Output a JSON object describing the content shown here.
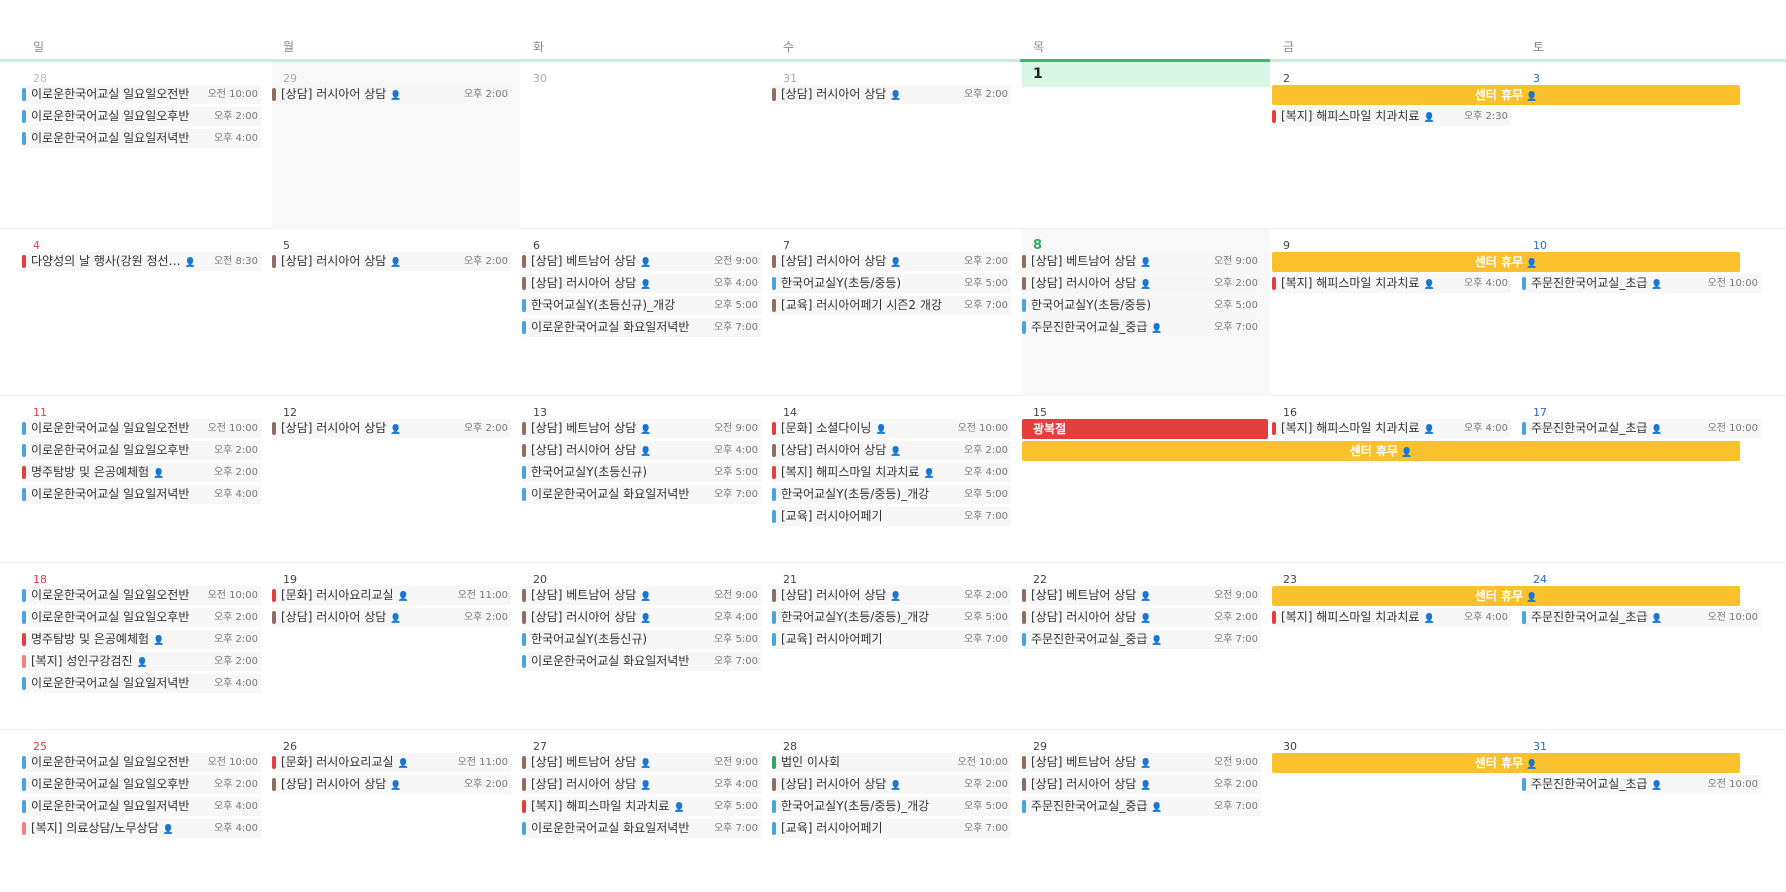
{
  "weekdays": [
    "일",
    "월",
    "화",
    "수",
    "목",
    "금",
    "토"
  ],
  "colors": {
    "blue": "#4aa3df",
    "brown": "#8d6e63",
    "red": "#e53e3e",
    "pink": "#f08080",
    "green": "#38a169",
    "amber": "#fbc12d"
  },
  "person_icon": "person-icon",
  "weeks": [
    {
      "days": [
        "28",
        "29",
        "30",
        "31",
        "1",
        "2",
        "3"
      ],
      "events": [
        {
          "col": 0,
          "row": 0,
          "color": "blue",
          "title": "이로운한국어교실 일요일오전반",
          "time": "오전 10:00",
          "person": false
        },
        {
          "col": 0,
          "row": 1,
          "color": "blue",
          "title": "이로운한국어교실 일요일오후반",
          "time": "오후 2:00",
          "person": false
        },
        {
          "col": 0,
          "row": 2,
          "color": "blue",
          "title": "이로운한국어교실 일요일저녁반",
          "time": "오후 4:00",
          "person": false
        },
        {
          "col": 1,
          "row": 0,
          "color": "brown",
          "title": "[상담] 러시아어 상담",
          "time": "오후 2:00",
          "person": true
        },
        {
          "col": 3,
          "row": 0,
          "color": "brown",
          "title": "[상담] 러시아어 상담",
          "time": "오후 2:00",
          "person": true
        },
        {
          "col": 5,
          "row": 1,
          "color": "red",
          "title": "[복지] 해피스마일 치과치료",
          "time": "오후 2:30",
          "person": true
        }
      ],
      "spans": [
        {
          "start": 5,
          "end": 6,
          "row": 0,
          "title": "센터 휴무"
        }
      ]
    },
    {
      "days": [
        "4",
        "5",
        "6",
        "7",
        "8",
        "9",
        "10"
      ],
      "events": [
        {
          "col": 0,
          "row": 0,
          "color": "red",
          "title": "다양성의 날 행사(강원 정선…",
          "time": "오전 8:30",
          "person": true
        },
        {
          "col": 1,
          "row": 0,
          "color": "brown",
          "title": "[상담] 러시아어 상담",
          "time": "오후 2:00",
          "person": true
        },
        {
          "col": 2,
          "row": 0,
          "color": "brown",
          "title": "[상담] 베트남어 상담",
          "time": "오전 9:00",
          "person": true
        },
        {
          "col": 2,
          "row": 1,
          "color": "brown",
          "title": "[상담] 러시아어 상담",
          "time": "오후 4:00",
          "person": true
        },
        {
          "col": 2,
          "row": 2,
          "color": "blue",
          "title": "한국어교실Y(초등신규)_개강",
          "time": "오후 5:00",
          "person": false
        },
        {
          "col": 2,
          "row": 3,
          "color": "blue",
          "title": "이로운한국어교실 화요일저녁반",
          "time": "오후 7:00",
          "person": false
        },
        {
          "col": 3,
          "row": 0,
          "color": "brown",
          "title": "[상담] 러시아어 상담",
          "time": "오후 2:00",
          "person": true
        },
        {
          "col": 3,
          "row": 1,
          "color": "blue",
          "title": "한국어교실Y(초등/중등)",
          "time": "오후 5:00",
          "person": false
        },
        {
          "col": 3,
          "row": 2,
          "color": "brown",
          "title": "[교육] 러시아어페기 시즌2 개강",
          "time": "오후 7:00",
          "person": false
        },
        {
          "col": 4,
          "row": 0,
          "color": "brown",
          "title": "[상담] 베트남어 상담",
          "time": "오전 9:00",
          "person": true
        },
        {
          "col": 4,
          "row": 1,
          "color": "brown",
          "title": "[상담] 러시아어 상담",
          "time": "오후 2:00",
          "person": true
        },
        {
          "col": 4,
          "row": 2,
          "color": "blue",
          "title": "한국어교실Y(초등/중등)",
          "time": "오후 5:00",
          "person": false
        },
        {
          "col": 4,
          "row": 3,
          "color": "blue",
          "title": "주문진한국어교실_중급",
          "time": "오후 7:00",
          "person": true
        },
        {
          "col": 5,
          "row": 1,
          "color": "red",
          "title": "[복지] 해피스마일 치과치료",
          "time": "오후 4:00",
          "person": true
        },
        {
          "col": 6,
          "row": 1,
          "color": "blue",
          "title": "주문진한국어교실_초급",
          "time": "오전 10:00",
          "person": true
        }
      ],
      "spans": [
        {
          "start": 5,
          "end": 6,
          "row": 0,
          "title": "센터 휴무"
        }
      ]
    },
    {
      "days": [
        "11",
        "12",
        "13",
        "14",
        "15",
        "16",
        "17"
      ],
      "events": [
        {
          "col": 0,
          "row": 0,
          "color": "blue",
          "title": "이로운한국어교실 일요일오전반",
          "time": "오전 10:00",
          "person": false
        },
        {
          "col": 0,
          "row": 1,
          "color": "blue",
          "title": "이로운한국어교실 일요일오후반",
          "time": "오후 2:00",
          "person": false
        },
        {
          "col": 0,
          "row": 2,
          "color": "red",
          "title": "명주탐방 및 은공예체험",
          "time": "오후 2:00",
          "person": true
        },
        {
          "col": 0,
          "row": 3,
          "color": "blue",
          "title": "이로운한국어교실 일요일저녁반",
          "time": "오후 4:00",
          "person": false
        },
        {
          "col": 1,
          "row": 0,
          "color": "brown",
          "title": "[상담] 러시아어 상담",
          "time": "오후 2:00",
          "person": true
        },
        {
          "col": 2,
          "row": 0,
          "color": "brown",
          "title": "[상담] 베트남어 상담",
          "time": "오전 9:00",
          "person": true
        },
        {
          "col": 2,
          "row": 1,
          "color": "brown",
          "title": "[상담] 러시아어 상담",
          "time": "오후 4:00",
          "person": true
        },
        {
          "col": 2,
          "row": 2,
          "color": "blue",
          "title": "한국어교실Y(초등신규)",
          "time": "오후 5:00",
          "person": false
        },
        {
          "col": 2,
          "row": 3,
          "color": "blue",
          "title": "이로운한국어교실 화요일저녁반",
          "time": "오후 7:00",
          "person": false
        },
        {
          "col": 3,
          "row": 0,
          "color": "red",
          "title": "[문화] 소셜다이닝",
          "time": "오전 10:00",
          "person": true
        },
        {
          "col": 3,
          "row": 1,
          "color": "brown",
          "title": "[상담] 러시아어 상담",
          "time": "오후 2:00",
          "person": true
        },
        {
          "col": 3,
          "row": 2,
          "color": "red",
          "title": "[복지] 해피스마일 치과치료",
          "time": "오후 4:00",
          "person": true
        },
        {
          "col": 3,
          "row": 3,
          "color": "blue",
          "title": "한국어교실Y(초등/중등)_개강",
          "time": "오후 5:00",
          "person": false
        },
        {
          "col": 3,
          "row": 4,
          "color": "blue",
          "title": "[교육] 러시아어페기",
          "time": "오후 7:00",
          "person": false
        },
        {
          "col": 5,
          "row": 0,
          "color": "red",
          "title": "[복지] 해피스마일 치과치료",
          "time": "오후 4:00",
          "person": true
        },
        {
          "col": 6,
          "row": 0,
          "color": "blue",
          "title": "주문진한국어교실_초급",
          "time": "오전 10:00",
          "person": true
        }
      ],
      "spans": [
        {
          "start": 4,
          "end": 6,
          "row": 1,
          "title": "센터 휴무"
        }
      ],
      "holidays": [
        {
          "col": 4,
          "row": 0,
          "title": "광복절"
        }
      ]
    },
    {
      "days": [
        "18",
        "19",
        "20",
        "21",
        "22",
        "23",
        "24"
      ],
      "events": [
        {
          "col": 0,
          "row": 0,
          "color": "blue",
          "title": "이로운한국어교실 일요일오전반",
          "time": "오전 10:00",
          "person": false
        },
        {
          "col": 0,
          "row": 1,
          "color": "blue",
          "title": "이로운한국어교실 일요일오후반",
          "time": "오후 2:00",
          "person": false
        },
        {
          "col": 0,
          "row": 2,
          "color": "red",
          "title": "명주탐방 및 은공예체험",
          "time": "오후 2:00",
          "person": true
        },
        {
          "col": 0,
          "row": 3,
          "color": "pink",
          "title": "[복지] 성인구강검진",
          "time": "오후 2:00",
          "person": true
        },
        {
          "col": 0,
          "row": 4,
          "color": "blue",
          "title": "이로운한국어교실 일요일저녁반",
          "time": "오후 4:00",
          "person": false
        },
        {
          "col": 1,
          "row": 0,
          "color": "red",
          "title": "[문화] 러시아요리교실",
          "time": "오전 11:00",
          "person": true
        },
        {
          "col": 1,
          "row": 1,
          "color": "brown",
          "title": "[상담] 러시아어 상담",
          "time": "오후 2:00",
          "person": true
        },
        {
          "col": 2,
          "row": 0,
          "color": "brown",
          "title": "[상담] 베트남어 상담",
          "time": "오전 9:00",
          "person": true
        },
        {
          "col": 2,
          "row": 1,
          "color": "brown",
          "title": "[상담] 러시아어 상담",
          "time": "오후 4:00",
          "person": true
        },
        {
          "col": 2,
          "row": 2,
          "color": "blue",
          "title": "한국어교실Y(초등신규)",
          "time": "오후 5:00",
          "person": false
        },
        {
          "col": 2,
          "row": 3,
          "color": "blue",
          "title": "이로운한국어교실 화요일저녁반",
          "time": "오후 7:00",
          "person": false
        },
        {
          "col": 3,
          "row": 0,
          "color": "brown",
          "title": "[상담] 러시아어 상담",
          "time": "오후 2:00",
          "person": true
        },
        {
          "col": 3,
          "row": 1,
          "color": "blue",
          "title": "한국어교실Y(초등/중등)_개강",
          "time": "오후 5:00",
          "person": false
        },
        {
          "col": 3,
          "row": 2,
          "color": "blue",
          "title": "[교육] 러시아어페기",
          "time": "오후 7:00",
          "person": false
        },
        {
          "col": 4,
          "row": 0,
          "color": "brown",
          "title": "[상담] 베트남어 상담",
          "time": "오전 9:00",
          "person": true
        },
        {
          "col": 4,
          "row": 1,
          "color": "brown",
          "title": "[상담] 러시아어 상담",
          "time": "오후 2:00",
          "person": true
        },
        {
          "col": 4,
          "row": 2,
          "color": "blue",
          "title": "주문진한국어교실_중급",
          "time": "오후 7:00",
          "person": true
        },
        {
          "col": 5,
          "row": 1,
          "color": "red",
          "title": "[복지] 해피스마일 치과치료",
          "time": "오후 4:00",
          "person": true
        },
        {
          "col": 6,
          "row": 1,
          "color": "blue",
          "title": "주문진한국어교실_초급",
          "time": "오전 10:00",
          "person": true
        }
      ],
      "spans": [
        {
          "start": 5,
          "end": 6,
          "row": 0,
          "title": "센터 휴무"
        }
      ]
    },
    {
      "days": [
        "25",
        "26",
        "27",
        "28",
        "29",
        "30",
        "31"
      ],
      "events": [
        {
          "col": 0,
          "row": 0,
          "color": "blue",
          "title": "이로운한국어교실 일요일오전반",
          "time": "오전 10:00",
          "person": false
        },
        {
          "col": 0,
          "row": 1,
          "color": "blue",
          "title": "이로운한국어교실 일요일오후반",
          "time": "오후 2:00",
          "person": false
        },
        {
          "col": 0,
          "row": 2,
          "color": "blue",
          "title": "이로운한국어교실 일요일저녁반",
          "time": "오후 4:00",
          "person": false
        },
        {
          "col": 0,
          "row": 3,
          "color": "pink",
          "title": "[복지] 의료상담/노무상담",
          "time": "오후 4:00",
          "person": true
        },
        {
          "col": 1,
          "row": 0,
          "color": "red",
          "title": "[문화] 러시아요리교실",
          "time": "오전 11:00",
          "person": true
        },
        {
          "col": 1,
          "row": 1,
          "color": "brown",
          "title": "[상담] 러시아어 상담",
          "time": "오후 2:00",
          "person": true
        },
        {
          "col": 2,
          "row": 0,
          "color": "brown",
          "title": "[상담] 베트남어 상담",
          "time": "오전 9:00",
          "person": true
        },
        {
          "col": 2,
          "row": 1,
          "color": "brown",
          "title": "[상담] 러시아어 상담",
          "time": "오후 4:00",
          "person": true
        },
        {
          "col": 2,
          "row": 2,
          "color": "red",
          "title": "[복지] 해피스마일 치과치료",
          "time": "오후 5:00",
          "person": true
        },
        {
          "col": 2,
          "row": 3,
          "color": "blue",
          "title": "이로운한국어교실 화요일저녁반",
          "time": "오후 7:00",
          "person": false
        },
        {
          "col": 3,
          "row": 0,
          "color": "green",
          "title": "법인 이사회",
          "time": "오전 10:00",
          "person": false
        },
        {
          "col": 3,
          "row": 1,
          "color": "brown",
          "title": "[상담] 러시아어 상담",
          "time": "오후 2:00",
          "person": true
        },
        {
          "col": 3,
          "row": 2,
          "color": "blue",
          "title": "한국어교실Y(초등/중등)_개강",
          "time": "오후 5:00",
          "person": false
        },
        {
          "col": 3,
          "row": 3,
          "color": "blue",
          "title": "[교육] 러시아어페기",
          "time": "오후 7:00",
          "person": false
        },
        {
          "col": 4,
          "row": 0,
          "color": "brown",
          "title": "[상담] 베트남어 상담",
          "time": "오전 9:00",
          "person": true
        },
        {
          "col": 4,
          "row": 1,
          "color": "brown",
          "title": "[상담] 러시아어 상담",
          "time": "오후 2:00",
          "person": true
        },
        {
          "col": 4,
          "row": 2,
          "color": "blue",
          "title": "주문진한국어교실_중급",
          "time": "오후 7:00",
          "person": true
        },
        {
          "col": 6,
          "row": 1,
          "color": "blue",
          "title": "주문진한국어교실_초급",
          "time": "오전 10:00",
          "person": true
        }
      ],
      "spans": [
        {
          "start": 5,
          "end": 6,
          "row": 0,
          "title": "센터 휴무"
        }
      ]
    }
  ]
}
